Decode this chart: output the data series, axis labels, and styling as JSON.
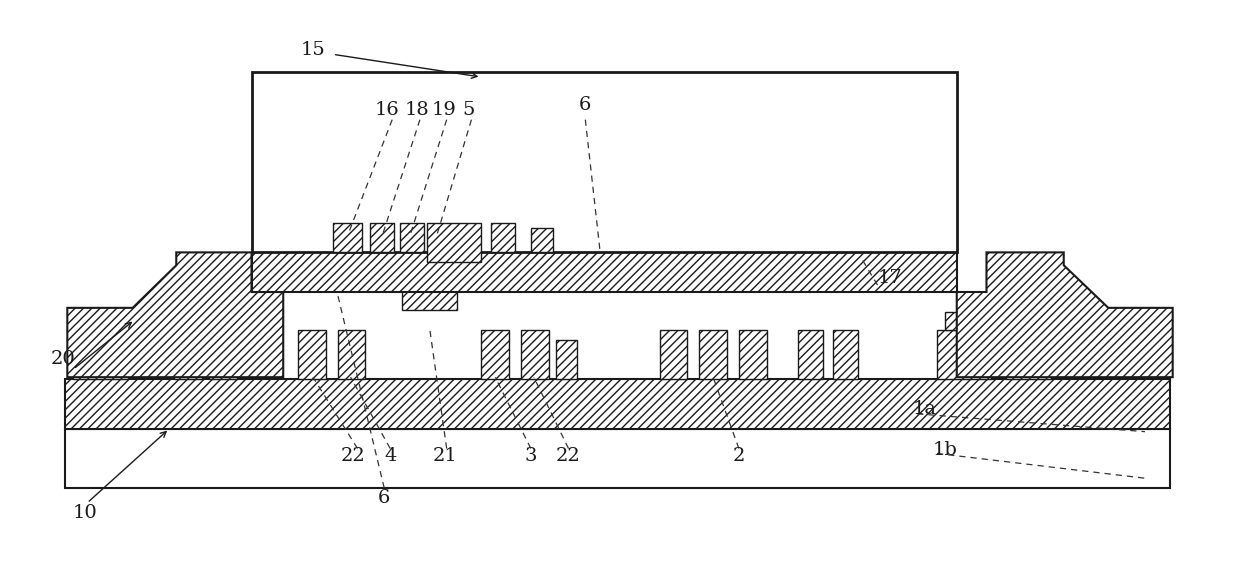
{
  "fig_width": 12.4,
  "fig_height": 5.84,
  "bg_color": "#ffffff",
  "lc": "#1a1a1a"
}
